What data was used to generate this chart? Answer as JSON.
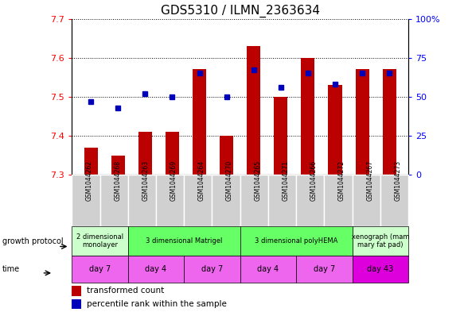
{
  "title": "GDS5310 / ILMN_2363634",
  "samples": [
    "GSM1044262",
    "GSM1044268",
    "GSM1044263",
    "GSM1044269",
    "GSM1044264",
    "GSM1044270",
    "GSM1044265",
    "GSM1044271",
    "GSM1044266",
    "GSM1044272",
    "GSM1044267",
    "GSM1044273"
  ],
  "transformed_count": [
    7.37,
    7.35,
    7.41,
    7.41,
    7.57,
    7.4,
    7.63,
    7.5,
    7.6,
    7.53,
    7.57,
    7.57
  ],
  "percentile_rank": [
    47,
    43,
    52,
    50,
    65,
    50,
    67,
    56,
    65,
    58,
    65,
    65
  ],
  "y_min": 7.3,
  "y_max": 7.7,
  "y_ticks": [
    7.3,
    7.4,
    7.5,
    7.6,
    7.7
  ],
  "y2_ticks": [
    0,
    25,
    50,
    75,
    100
  ],
  "bar_color": "#bb0000",
  "dot_color": "#0000bb",
  "grid_color": "#000000",
  "groups": [
    {
      "label": "2 dimensional\nmonolayer",
      "start": 0,
      "end": 2,
      "color": "#ccffcc"
    },
    {
      "label": "3 dimensional Matrigel",
      "start": 2,
      "end": 6,
      "color": "#66ff66"
    },
    {
      "label": "3 dimensional polyHEMA",
      "start": 6,
      "end": 10,
      "color": "#66ff66"
    },
    {
      "label": "xenograph (mam\nmary fat pad)",
      "start": 10,
      "end": 12,
      "color": "#ccffcc"
    }
  ],
  "time_groups": [
    {
      "label": "day 7",
      "start": 0,
      "end": 2,
      "color": "#ee66ee"
    },
    {
      "label": "day 4",
      "start": 2,
      "end": 4,
      "color": "#ee66ee"
    },
    {
      "label": "day 7",
      "start": 4,
      "end": 6,
      "color": "#ee66ee"
    },
    {
      "label": "day 4",
      "start": 6,
      "end": 8,
      "color": "#ee66ee"
    },
    {
      "label": "day 7",
      "start": 8,
      "end": 10,
      "color": "#ee66ee"
    },
    {
      "label": "day 43",
      "start": 10,
      "end": 12,
      "color": "#dd00dd"
    }
  ],
  "legend_items": [
    {
      "color": "#bb0000",
      "label": "transformed count"
    },
    {
      "color": "#0000bb",
      "label": "percentile rank within the sample"
    }
  ],
  "title_fontsize": 11,
  "tick_fontsize": 8,
  "label_fontsize": 8
}
